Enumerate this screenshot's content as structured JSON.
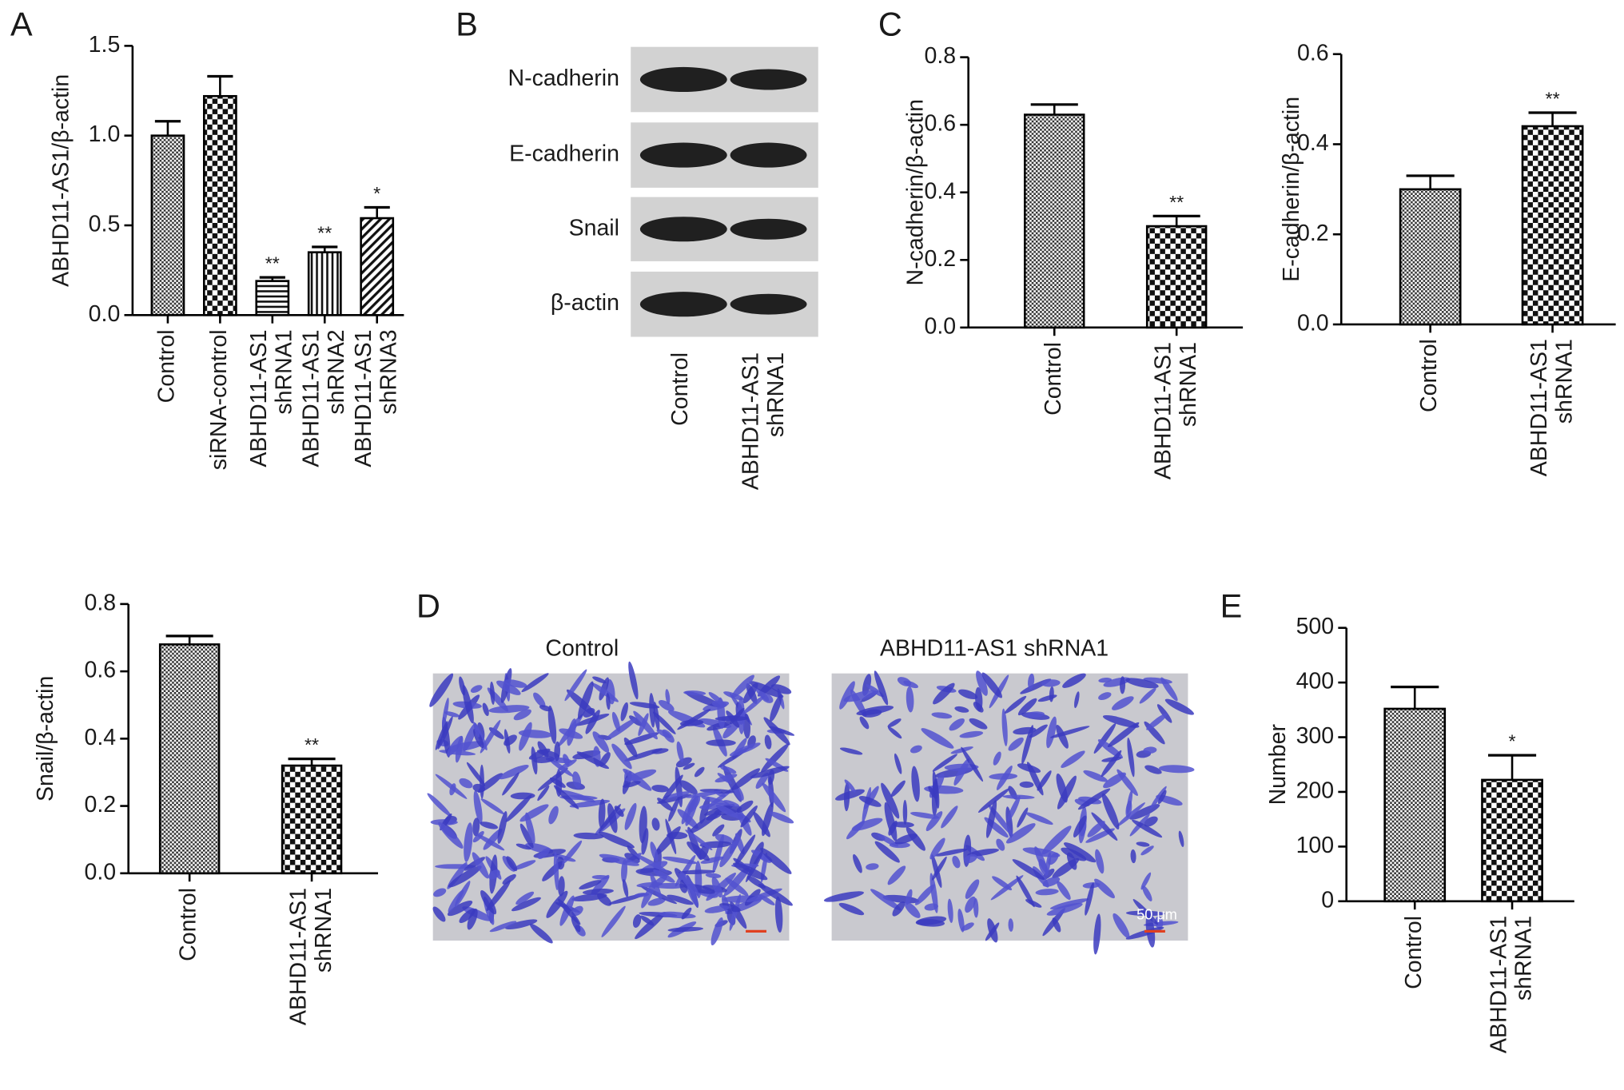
{
  "panels": {
    "labels": [
      "A",
      "B",
      "C",
      "D",
      "E"
    ]
  },
  "western_blot": {
    "bands": [
      "N-cadherin",
      "E-cadherin",
      "Snail",
      "β-actin"
    ],
    "lanes": [
      "Control",
      "ABHD11-AS1\nshRNA1"
    ]
  },
  "micrographs": {
    "titles": [
      "Control",
      "ABHD11-AS1 shRNA1"
    ],
    "scale_bar": "50 μm"
  },
  "chart_data": [
    {
      "type": "bar",
      "ylabel": "ABHD11-AS1/β-actin",
      "categories": [
        "Control",
        "siRNA-control",
        "ABHD11-AS1\nshRNA1",
        "ABHD11-AS1\nshRNA2",
        "ABHD11-AS1\nshRNA3"
      ],
      "values": [
        1.0,
        1.22,
        0.19,
        0.35,
        0.54
      ],
      "errors": [
        0.08,
        0.11,
        0.02,
        0.03,
        0.06
      ],
      "annotations": [
        null,
        null,
        "**",
        "**",
        "*"
      ],
      "patterns": [
        "crosshatch",
        "checker",
        "horizontal",
        "vertical",
        "diagonal"
      ],
      "color": "#000000",
      "ylim": [
        0,
        1.5
      ],
      "yticks": [
        {
          "value": 0,
          "label": "0.0"
        },
        0.5,
        {
          "value": 1,
          "label": "1.0"
        },
        1.5
      ]
    },
    {
      "type": "bar",
      "ylabel": "N-cadherin/β-actin",
      "categories": [
        "Control",
        "ABHD11-AS1\nshRNA1"
      ],
      "values": [
        0.63,
        0.3
      ],
      "errors": [
        0.03,
        0.03
      ],
      "annotations": [
        null,
        "**"
      ],
      "patterns": [
        "crosshatch",
        "checker"
      ],
      "color": "#000000",
      "ylim": [
        0,
        0.8
      ],
      "yticks": [
        {
          "value": 0,
          "label": "0.0"
        },
        0.2,
        0.4,
        0.6,
        0.8
      ]
    },
    {
      "type": "bar",
      "ylabel": "E-cadherin/β-actin",
      "categories": [
        "Control",
        "ABHD11-AS1\nshRNA1"
      ],
      "values": [
        0.3,
        0.44
      ],
      "errors": [
        0.03,
        0.03
      ],
      "annotations": [
        null,
        "**"
      ],
      "patterns": [
        "crosshatch",
        "checker"
      ],
      "color": "#000000",
      "ylim": [
        0,
        0.6
      ],
      "yticks": [
        {
          "value": 0,
          "label": "0.0"
        },
        0.2,
        0.4,
        0.6
      ]
    },
    {
      "type": "bar",
      "ylabel": "Snail/β-actin",
      "categories": [
        "Control",
        "ABHD11-AS1\nshRNA1"
      ],
      "values": [
        0.68,
        0.32
      ],
      "errors": [
        0.025,
        0.02
      ],
      "annotations": [
        null,
        "**"
      ],
      "patterns": [
        "crosshatch",
        "checker"
      ],
      "color": "#000000",
      "ylim": [
        0,
        0.8
      ],
      "yticks": [
        {
          "value": 0,
          "label": "0.0"
        },
        0.2,
        0.4,
        0.6,
        0.8
      ]
    },
    {
      "type": "bar",
      "ylabel": "Number",
      "categories": [
        "Control",
        "ABHD11-AS1\nshRNA1"
      ],
      "values": [
        352,
        222
      ],
      "errors": [
        40,
        45
      ],
      "annotations": [
        null,
        "*"
      ],
      "patterns": [
        "crosshatch",
        "checker"
      ],
      "color": "#000000",
      "ylim": [
        0,
        500
      ],
      "yticks": [
        0,
        100,
        200,
        300,
        400,
        500
      ]
    }
  ]
}
